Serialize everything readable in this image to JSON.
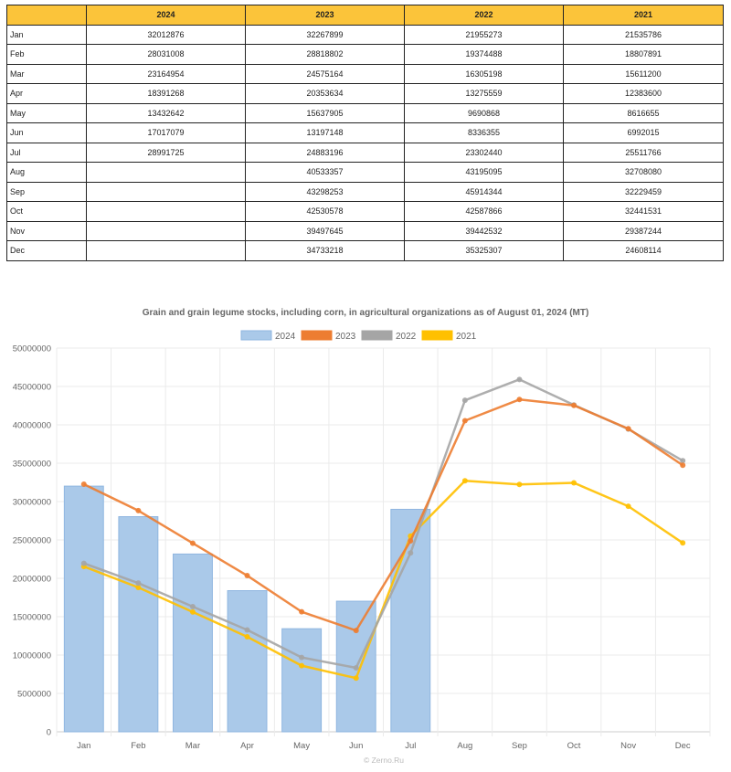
{
  "table": {
    "headers": [
      "",
      "2024",
      "2023",
      "2022",
      "2021"
    ],
    "rows": [
      [
        "Jan",
        "32012876",
        "32267899",
        "21955273",
        "21535786"
      ],
      [
        "Feb",
        "28031008",
        "28818802",
        "19374488",
        "18807891"
      ],
      [
        "Mar",
        "23164954",
        "24575164",
        "16305198",
        "15611200"
      ],
      [
        "Apr",
        "18391268",
        "20353634",
        "13275559",
        "12383600"
      ],
      [
        "May",
        "13432642",
        "15637905",
        "9690868",
        "8616655"
      ],
      [
        "Jun",
        "17017079",
        "13197148",
        "8336355",
        "6992015"
      ],
      [
        "Jul",
        "28991725",
        "24883196",
        "23302440",
        "25511766"
      ],
      [
        "Aug",
        "",
        "40533357",
        "43195095",
        "32708080"
      ],
      [
        "Sep",
        "",
        "43298253",
        "45914344",
        "32229459"
      ],
      [
        "Oct",
        "",
        "42530578",
        "42587866",
        "32441531"
      ],
      [
        "Nov",
        "",
        "39497645",
        "39442532",
        "29387244"
      ],
      [
        "Dec",
        "",
        "34733218",
        "35325307",
        "24608114"
      ]
    ]
  },
  "chart_data": {
    "type": "bar",
    "title": "Grain and grain legume stocks, including corn, in agricultural organizations as of August 01, 2024 (MT)",
    "categories": [
      "Jan",
      "Feb",
      "Mar",
      "Apr",
      "May",
      "Jun",
      "Jul",
      "Aug",
      "Sep",
      "Oct",
      "Nov",
      "Dec"
    ],
    "ylim": [
      0,
      50000000
    ],
    "yticks": [
      0,
      5000000,
      10000000,
      15000000,
      20000000,
      25000000,
      30000000,
      35000000,
      40000000,
      45000000,
      50000000
    ],
    "ytick_labels": [
      "0",
      "5000000",
      "10000000",
      "15000000",
      "20000000",
      "25000000",
      "30000000",
      "35000000",
      "40000000",
      "45000000",
      "50000000"
    ],
    "grid": true,
    "legend_position": "top",
    "series": [
      {
        "name": "2024",
        "type": "bar",
        "color": "#aac9e9",
        "border": "#8fb6e0",
        "values": [
          32012876,
          28031008,
          23164954,
          18391268,
          13432642,
          17017079,
          28991725,
          null,
          null,
          null,
          null,
          null
        ]
      },
      {
        "name": "2023",
        "type": "line",
        "color": "#ed7d31",
        "values": [
          32267899,
          28818802,
          24575164,
          20353634,
          15637905,
          13197148,
          24883196,
          40533357,
          43298253,
          42530578,
          39497645,
          34733218
        ]
      },
      {
        "name": "2022",
        "type": "line",
        "color": "#a5a5a5",
        "values": [
          21955273,
          19374488,
          16305198,
          13275559,
          9690868,
          8336355,
          23302440,
          43195095,
          45914344,
          42587866,
          39442532,
          35325307
        ]
      },
      {
        "name": "2021",
        "type": "line",
        "color": "#ffc000",
        "values": [
          21535786,
          18807891,
          15611200,
          12383600,
          8616655,
          6992015,
          25511766,
          32708080,
          32229459,
          32441531,
          29387244,
          24608114
        ]
      }
    ],
    "footer": "© Zerno.Ru"
  }
}
